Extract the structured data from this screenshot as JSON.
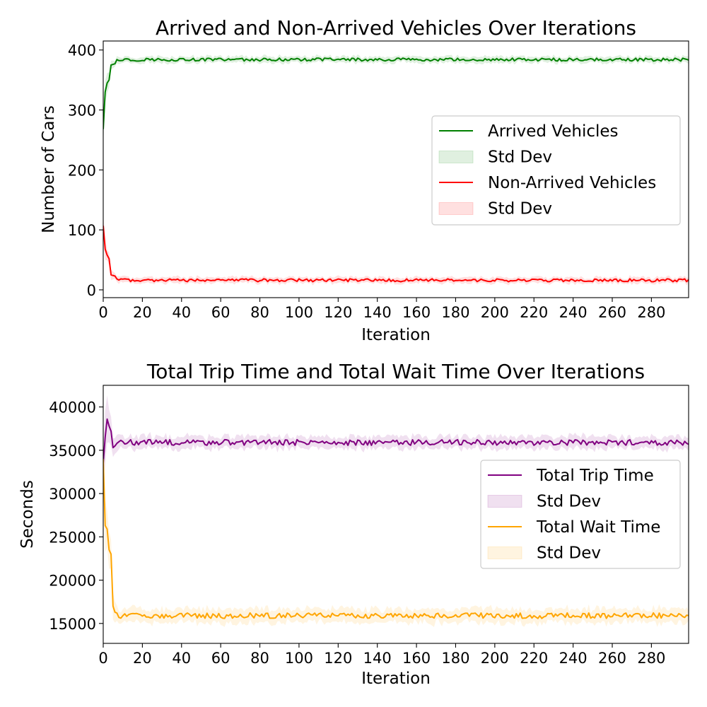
{
  "chart_data": [
    {
      "type": "line",
      "title": "Arrived and Non-Arrived Vehicles Over Iterations",
      "xlabel": "Iteration",
      "ylabel": "Number of Cars",
      "xlim": [
        0,
        299
      ],
      "ylim": [
        -13,
        415
      ],
      "xticks": [
        0,
        20,
        40,
        60,
        80,
        100,
        120,
        140,
        160,
        180,
        200,
        220,
        240,
        260,
        280
      ],
      "yticks": [
        0,
        100,
        200,
        300,
        400
      ],
      "legend": "center-right",
      "series": [
        {
          "name": "Arrived Vehicles",
          "color": "#008000",
          "band_color": "#008000",
          "band_label": "Std Dev",
          "head": [
            268,
            330,
            345,
            350,
            375,
            376,
            377
          ],
          "level": 384,
          "noise": 2.5,
          "band_head": [
            30,
            25,
            20,
            15,
            10,
            8,
            6
          ],
          "band": 5
        },
        {
          "name": "Non-Arrived Vehicles",
          "color": "#ff0000",
          "band_color": "#ff0000",
          "band_label": "Std Dev",
          "head": [
            107,
            68,
            58,
            52,
            25,
            24,
            23
          ],
          "level": 16,
          "noise": 2.5,
          "band_head": [
            20,
            16,
            12,
            10,
            8,
            7,
            6
          ],
          "band": 5
        }
      ]
    },
    {
      "type": "line",
      "title": "Total Trip Time and Total Wait Time Over Iterations",
      "xlabel": "Iteration",
      "ylabel": "Seconds",
      "xlim": [
        0,
        299
      ],
      "ylim": [
        12700,
        42500
      ],
      "xticks": [
        0,
        20,
        40,
        60,
        80,
        100,
        120,
        140,
        160,
        180,
        200,
        220,
        240,
        260,
        280
      ],
      "yticks": [
        15000,
        20000,
        25000,
        30000,
        35000,
        40000
      ],
      "legend": "center-right",
      "series": [
        {
          "name": "Total Trip Time",
          "color": "#800080",
          "band_color": "#800080",
          "band_label": "Std Dev",
          "head": [
            33500,
            36500,
            38600,
            37800,
            37200,
            35300,
            35500,
            35800
          ],
          "level": 35900,
          "noise": 330,
          "band_head": [
            2500,
            2500,
            2800,
            2000,
            1500,
            1200,
            900,
            800
          ],
          "band": 700
        },
        {
          "name": "Total Wait Time",
          "color": "#ffa500",
          "band_color": "#ffa500",
          "band_label": "Std Dev",
          "head": [
            34000,
            26300,
            25900,
            23500,
            23000,
            17000,
            16300,
            16200
          ],
          "level": 15900,
          "noise": 320,
          "band_head": [
            3500,
            3000,
            2500,
            2000,
            1800,
            1500,
            1200,
            1000
          ],
          "band": 800
        }
      ]
    }
  ]
}
